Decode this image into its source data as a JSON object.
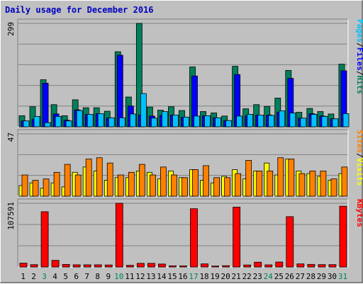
{
  "title": "Daily usage for December 2016",
  "chart_data": [
    {
      "type": "bar",
      "title": "Daily usage for December 2016",
      "panel": "top",
      "ylim": [
        0,
        299
      ],
      "ytick_max": "299",
      "categories": [
        "1",
        "2",
        "3",
        "4",
        "5",
        "6",
        "7",
        "8",
        "9",
        "10",
        "11",
        "12",
        "13",
        "14",
        "15",
        "16",
        "17",
        "18",
        "19",
        "20",
        "21",
        "22",
        "23",
        "24",
        "25",
        "26",
        "27",
        "28",
        "29",
        "30",
        "31"
      ],
      "weekend_days": [
        "3",
        "10",
        "17",
        "24",
        "31"
      ],
      "grid": true,
      "legend": [
        {
          "label": "Pages",
          "color": "#00c0ff"
        },
        {
          "label": "Files",
          "color": "#0000ff"
        },
        {
          "label": "Hits",
          "color": "#00805c"
        }
      ],
      "legend_sep": "/",
      "series": [
        {
          "name": "Hits",
          "color": "#00805c",
          "values": [
            32,
            58,
            136,
            64,
            32,
            78,
            55,
            55,
            45,
            217,
            86,
            299,
            57,
            48,
            58,
            47,
            173,
            44,
            40,
            31,
            175,
            52,
            64,
            59,
            83,
            163,
            42,
            53,
            44,
            37,
            181
          ]
        },
        {
          "name": "Files",
          "color": "#0000ff",
          "values": [
            17,
            21,
            126,
            37,
            19,
            49,
            36,
            38,
            26,
            207,
            60,
            34,
            31,
            33,
            34,
            28,
            147,
            32,
            26,
            18,
            151,
            31,
            34,
            34,
            42,
            140,
            25,
            38,
            31,
            23,
            162
          ]
        },
        {
          "name": "Pages",
          "color": "#00c0ff",
          "values": [
            17,
            30,
            12,
            30,
            17,
            47,
            36,
            38,
            26,
            26,
            37,
            96,
            25,
            44,
            34,
            28,
            31,
            32,
            26,
            18,
            31,
            36,
            34,
            33,
            46,
            40,
            25,
            36,
            30,
            23,
            38
          ]
        }
      ]
    },
    {
      "type": "bar",
      "panel": "middle",
      "ylim": [
        0,
        47
      ],
      "ytick_max": "47",
      "grid": true,
      "legend": [
        {
          "label": "Sites",
          "color": "#ff8000"
        },
        {
          "label": "Visits",
          "color": "#ffff00"
        }
      ],
      "legend_sep": "/",
      "series": [
        {
          "name": "Visits",
          "color": "#ffff00",
          "values": [
            8,
            10,
            6,
            10,
            7,
            18,
            22,
            19,
            12,
            14,
            14,
            19,
            18,
            13,
            19,
            14,
            20,
            12,
            10,
            15,
            20,
            13,
            19,
            25,
            16,
            28,
            19,
            17,
            15,
            12,
            17
          ]
        },
        {
          "name": "Sites",
          "color": "#ff8000",
          "values": [
            16,
            12,
            13,
            18,
            24,
            16,
            28,
            29,
            25,
            16,
            18,
            24,
            16,
            22,
            16,
            14,
            20,
            23,
            14,
            14,
            17,
            27,
            19,
            19,
            29,
            28,
            17,
            19,
            19,
            13,
            22
          ],
          "note": "Sites bars shown as total height"
        }
      ]
    },
    {
      "type": "bar",
      "panel": "bottom",
      "ylim": [
        0,
        107591
      ],
      "ytick_max": "107591",
      "grid": true,
      "legend": [
        {
          "label": "KBytes",
          "color": "#ff0000"
        }
      ],
      "series": [
        {
          "name": "KBytes",
          "color": "#ff0000",
          "values": [
            6500,
            3900,
            93300,
            11200,
            4300,
            3700,
            3700,
            3700,
            3400,
            107591,
            2800,
            6200,
            6200,
            5000,
            2000,
            1900,
            98400,
            5300,
            1600,
            2200,
            101100,
            3400,
            8100,
            3600,
            8400,
            85000,
            5300,
            4400,
            4000,
            4000,
            102600
          ]
        }
      ]
    }
  ]
}
